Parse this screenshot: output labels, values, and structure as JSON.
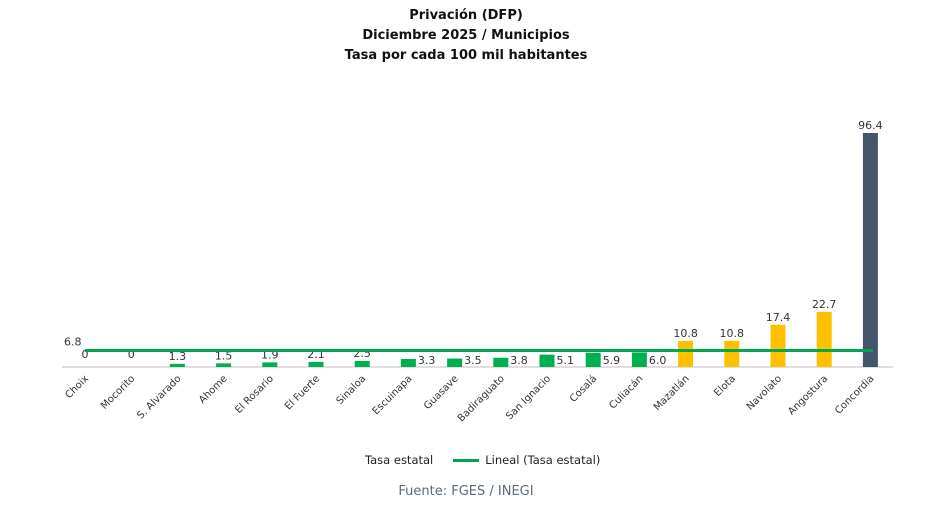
{
  "chart_data": {
    "type": "bar",
    "title": [
      "Privación (DFP)",
      "Diciembre 2025 / Municipios",
      "Tasa por cada 100 mil habitantes"
    ],
    "categories": [
      "Choix",
      "Mocorito",
      "S. Alvarado",
      "Ahome",
      "El Rosario",
      "El Fuerte",
      "Sinaloa",
      "Escuinapa",
      "Guasave",
      "Badiraguato",
      "San Ignacio",
      "Cosalá",
      "Culiacán",
      "Mazatlán",
      "Elota",
      "Navolato",
      "Angostura",
      "Concordia"
    ],
    "values": [
      0,
      0,
      1.3,
      1.5,
      1.9,
      2.1,
      2.5,
      3.3,
      3.5,
      3.8,
      5.1,
      5.9,
      6.0,
      10.8,
      10.8,
      17.4,
      22.7,
      96.4
    ],
    "value_labels": [
      "0",
      "0",
      "1.3",
      "1.5",
      "1.9",
      "2.1",
      "2.5",
      "3.3",
      "3.5",
      "3.8",
      "5.1",
      "5.9",
      "6.0",
      "10.8",
      "10.8",
      "17.4",
      "22.7",
      "96.4"
    ],
    "bar_colors": [
      "#00b050",
      "#00b050",
      "#00b050",
      "#00b050",
      "#00b050",
      "#00b050",
      "#00b050",
      "#00b050",
      "#00b050",
      "#00b050",
      "#00b050",
      "#00b050",
      "#00b050",
      "#ffc000",
      "#ffc000",
      "#ffc000",
      "#ffc000",
      "#44546a"
    ],
    "reference_line": {
      "name": "Lineal (Tasa estatal)",
      "value": 6.8,
      "label": "6.8",
      "color": "#00a650"
    },
    "legend": [
      "Tasa estatal",
      "Lineal (Tasa estatal)"
    ],
    "legend_position": "bottom",
    "ylim": [
      0,
      96.4
    ],
    "grid": false,
    "xlabel": "",
    "ylabel": ""
  },
  "source": "Fuente: FGES / INEGI"
}
